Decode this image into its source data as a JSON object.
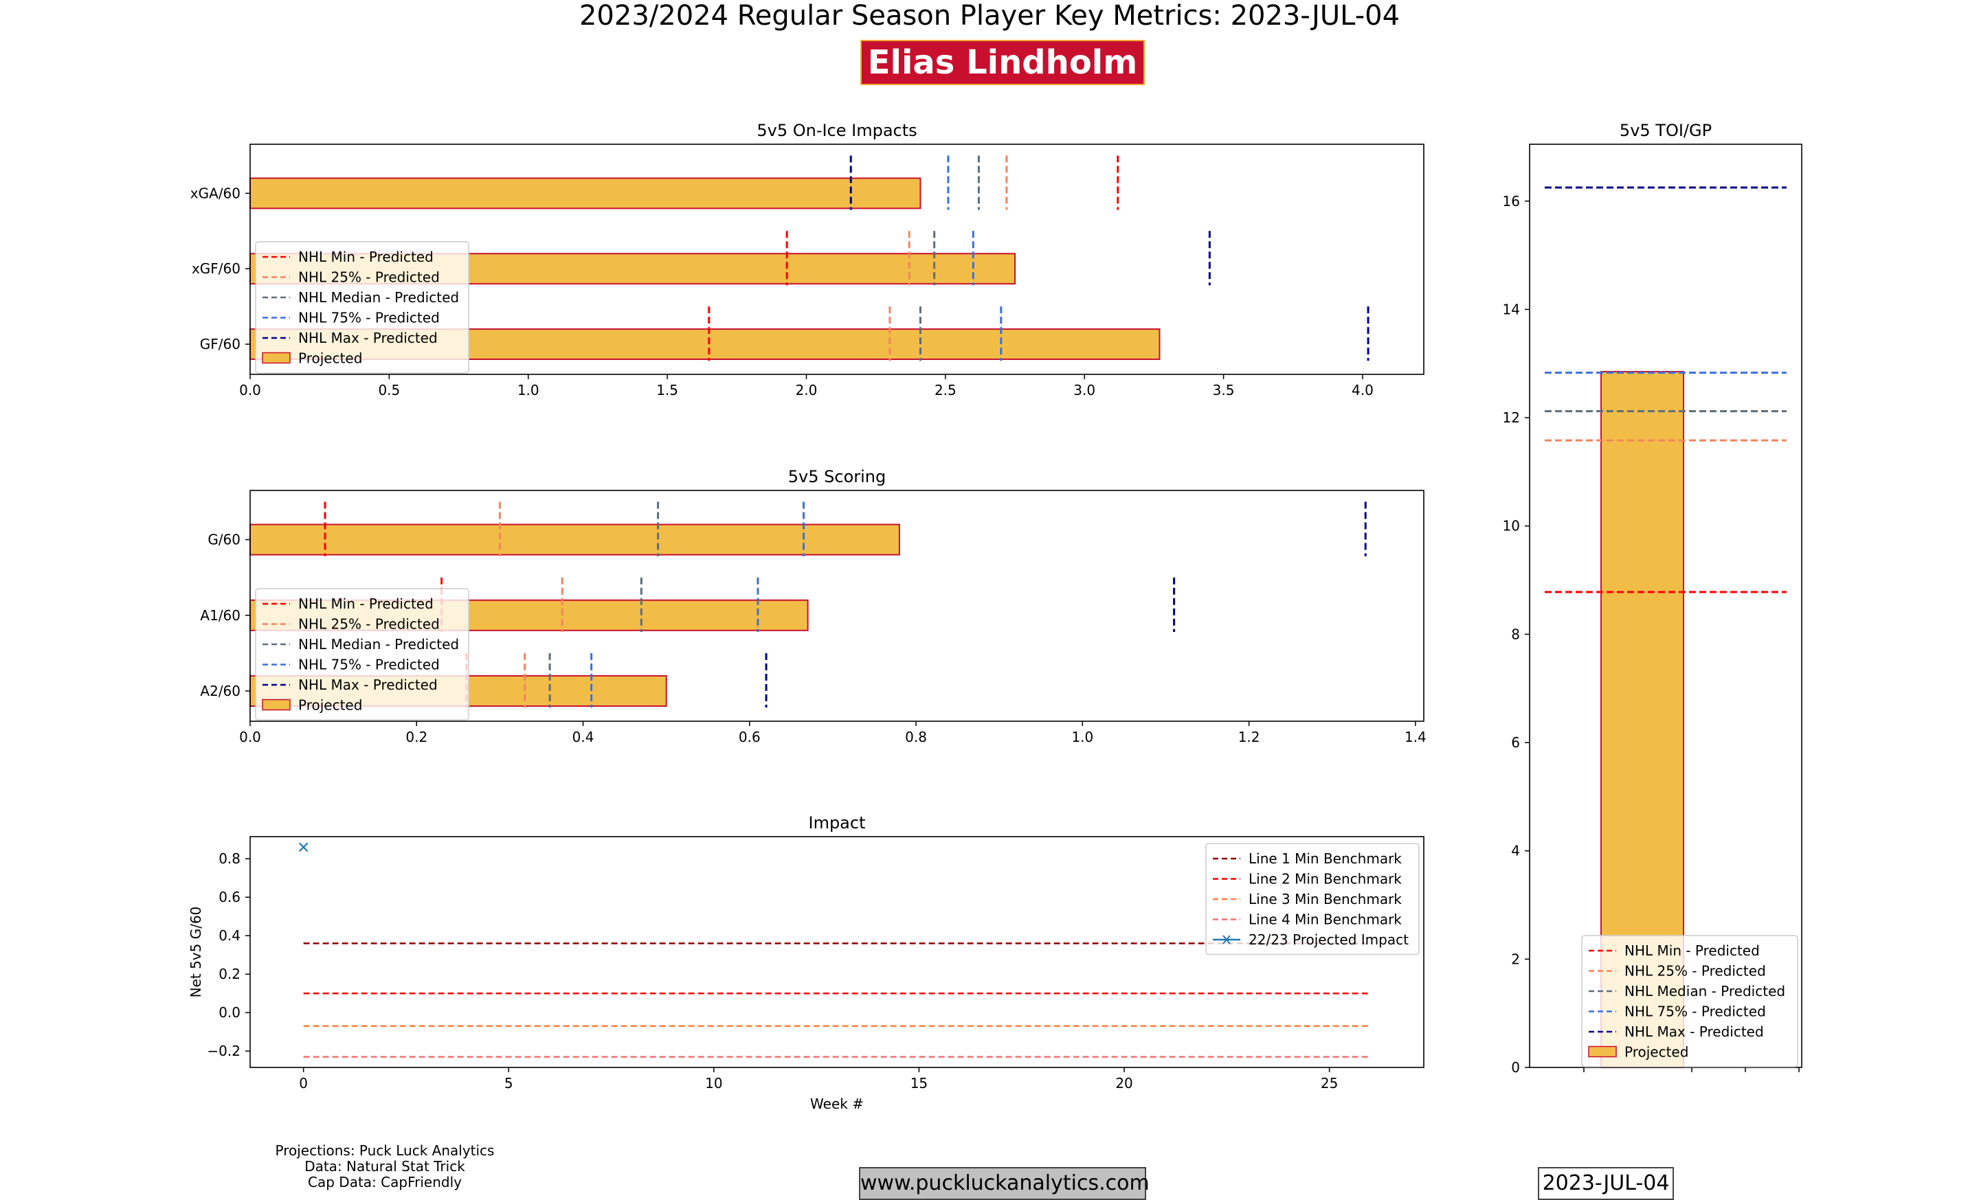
{
  "header": {
    "title": "2023/2024 Regular Season Player Key Metrics: 2023-JUL-04",
    "player": "Elias Lindholm",
    "player_bg": "#c8102e"
  },
  "footer": {
    "credits": [
      "Projections: Puck Luck Analytics",
      "Data: Natural Stat Trick",
      "Cap Data: CapFriendly"
    ],
    "website": "www.puckluckanalytics.com",
    "date": "2023-JUL-04"
  },
  "colors": {
    "bar_fill": "#f2bd47",
    "bar_edge": "#c8102e",
    "min": "#ff0000",
    "p25": "#f4845f",
    "median": "#5d6d7e",
    "p75": "#3a6fe0",
    "max": "#00008b",
    "line1": "#8b0000",
    "line2": "#ff0000",
    "line3": "#ff7f3f",
    "line4": "#f07070",
    "impact": "#1f77b4"
  },
  "chart_data": [
    {
      "id": "onice",
      "type": "bar",
      "orientation": "horizontal",
      "title": "5v5 On-Ice Impacts",
      "categories": [
        "GF/60",
        "xGF/60",
        "xGA/60"
      ],
      "values": [
        3.27,
        2.75,
        2.41
      ],
      "xlim": [
        0,
        4.22
      ],
      "xticks": [
        "0.0",
        "0.5",
        "1.0",
        "1.5",
        "2.0",
        "2.5",
        "3.0",
        "3.5",
        "4.0"
      ],
      "benchmarks": {
        "NHL Min - Predicted": [
          1.65,
          1.93,
          3.12
        ],
        "NHL 25% - Predicted": [
          2.3,
          2.37,
          2.72
        ],
        "NHL Median - Predicted": [
          2.41,
          2.46,
          2.62
        ],
        "NHL 75% - Predicted": [
          2.7,
          2.6,
          2.51
        ],
        "NHL Max - Predicted": [
          4.02,
          3.45,
          2.16
        ]
      },
      "legend": [
        "NHL Min - Predicted",
        "NHL 25% - Predicted",
        "NHL Median - Predicted",
        "NHL 75% - Predicted",
        "NHL Max - Predicted",
        "Projected"
      ]
    },
    {
      "id": "scoring",
      "type": "bar",
      "orientation": "horizontal",
      "title": "5v5 Scoring",
      "categories": [
        "A2/60",
        "A1/60",
        "G/60"
      ],
      "values": [
        0.5,
        0.67,
        0.78
      ],
      "xlim": [
        0,
        1.41
      ],
      "xticks": [
        "0.0",
        "0.2",
        "0.4",
        "0.6",
        "0.8",
        "1.0",
        "1.2",
        "1.4"
      ],
      "benchmarks": {
        "NHL Min - Predicted": [
          0.26,
          0.23,
          0.09
        ],
        "NHL 25% - Predicted": [
          0.33,
          0.375,
          0.3
        ],
        "NHL Median - Predicted": [
          0.36,
          0.47,
          0.49
        ],
        "NHL 75% - Predicted": [
          0.41,
          0.61,
          0.665
        ],
        "NHL Max - Predicted": [
          0.62,
          1.11,
          1.34
        ]
      },
      "legend": [
        "NHL Min - Predicted",
        "NHL 25% - Predicted",
        "NHL Median - Predicted",
        "NHL 75% - Predicted",
        "NHL Max - Predicted",
        "Projected"
      ]
    },
    {
      "id": "impact",
      "type": "line",
      "title": "Impact",
      "xlabel": "Week #",
      "ylabel": "Net 5v5 G/60",
      "xlim": [
        -1.3,
        27.3
      ],
      "ylim": [
        -0.285,
        0.915
      ],
      "xticks": [
        0,
        5,
        10,
        15,
        20,
        25
      ],
      "yticks": [
        "−0.2",
        "0.0",
        "0.2",
        "0.4",
        "0.6",
        "0.8"
      ],
      "series": [
        {
          "name": "Line 1 Min Benchmark",
          "y": 0.36,
          "x": [
            0,
            26
          ]
        },
        {
          "name": "Line 2 Min Benchmark",
          "y": 0.1,
          "x": [
            0,
            26
          ]
        },
        {
          "name": "Line 3 Min Benchmark",
          "y": -0.07,
          "x": [
            0,
            26
          ]
        },
        {
          "name": "Line 4 Min Benchmark",
          "y": -0.23,
          "x": [
            0,
            26
          ]
        },
        {
          "name": "22/23 Projected Impact",
          "points": [
            [
              0,
              0.86
            ]
          ]
        }
      ]
    },
    {
      "id": "toi",
      "type": "bar",
      "title": "5v5 TOI/GP",
      "categories": [
        ""
      ],
      "values": [
        12.85
      ],
      "ylim": [
        0,
        17.05
      ],
      "yticks": [
        "0",
        "2",
        "4",
        "6",
        "8",
        "10",
        "12",
        "14",
        "16"
      ],
      "benchmarks": {
        "NHL Min - Predicted": 8.78,
        "NHL 25% - Predicted": 11.58,
        "NHL Median - Predicted": 12.12,
        "NHL 75% - Predicted": 12.83,
        "NHL Max - Predicted": 16.25
      },
      "legend": [
        "NHL Min - Predicted",
        "NHL 25% - Predicted",
        "NHL Median - Predicted",
        "NHL 75% - Predicted",
        "NHL Max - Predicted",
        "Projected"
      ]
    }
  ]
}
